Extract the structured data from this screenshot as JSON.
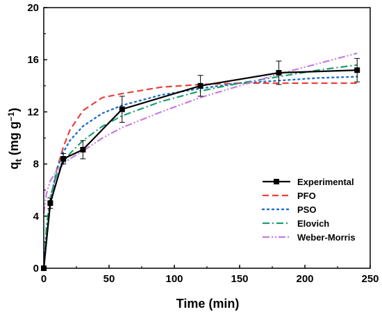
{
  "chart_data": {
    "type": "line",
    "xlabel": "Time (min)",
    "ylabel_main": "q",
    "ylabel_sub": "t",
    "ylabel_unit_open": " (mg g",
    "ylabel_unit_sup": "−1",
    "ylabel_unit_close": ")",
    "xlim": [
      0,
      250
    ],
    "ylim": [
      0,
      20
    ],
    "xticks": [
      0,
      50,
      100,
      150,
      200,
      250
    ],
    "yticks": [
      0,
      4,
      8,
      12,
      16,
      20
    ],
    "grid": false,
    "legend_position": "center-right",
    "series": [
      {
        "name": "Experimental",
        "color": "#000000",
        "style": "solid-markers",
        "x": [
          0,
          5,
          15,
          30,
          60,
          120,
          180,
          240
        ],
        "y": [
          0,
          5.0,
          8.4,
          9.1,
          12.2,
          14.0,
          15.0,
          15.2
        ],
        "yerr": [
          0,
          0.4,
          0.4,
          0.7,
          1.0,
          0.8,
          0.9,
          0.9
        ]
      },
      {
        "name": "PFO",
        "color": "#e8413a",
        "style": "dash",
        "x": [
          0,
          2,
          5,
          10,
          15,
          20,
          30,
          45,
          60,
          90,
          120,
          150,
          180,
          210,
          240
        ],
        "y": [
          0,
          2.2,
          4.8,
          7.6,
          9.3,
          10.6,
          12.1,
          13.1,
          13.4,
          13.9,
          14.1,
          14.2,
          14.2,
          14.2,
          14.2
        ]
      },
      {
        "name": "PSO",
        "color": "#1e6fc8",
        "style": "dot",
        "x": [
          0,
          2,
          5,
          10,
          15,
          20,
          30,
          45,
          60,
          90,
          120,
          150,
          180,
          210,
          240
        ],
        "y": [
          0,
          2.8,
          5.2,
          7.6,
          8.9,
          9.8,
          10.9,
          11.9,
          12.5,
          13.3,
          13.8,
          14.2,
          14.4,
          14.6,
          14.7
        ]
      },
      {
        "name": "Elovich",
        "color": "#1a9e6a",
        "style": "dashdot",
        "x": [
          0.5,
          2,
          5,
          10,
          15,
          20,
          30,
          45,
          60,
          90,
          120,
          150,
          180,
          210,
          240
        ],
        "y": [
          0.5,
          3.2,
          5.5,
          7.2,
          8.1,
          8.8,
          9.8,
          10.9,
          11.7,
          12.8,
          13.6,
          14.2,
          14.7,
          15.2,
          15.6
        ]
      },
      {
        "name": "Weber-Morris",
        "color": "#c77be0",
        "style": "dashdotdot",
        "x": [
          0,
          2,
          5,
          10,
          15,
          20,
          30,
          45,
          60,
          90,
          120,
          150,
          180,
          210,
          240
        ],
        "y": [
          4.2,
          5.7,
          6.7,
          7.5,
          8.0,
          8.4,
          9.0,
          10.0,
          10.8,
          12.0,
          13.1,
          14.0,
          14.9,
          15.7,
          16.5
        ]
      }
    ]
  }
}
